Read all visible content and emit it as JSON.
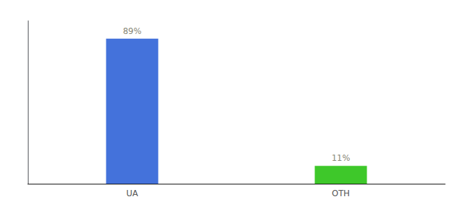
{
  "chart_data": {
    "type": "bar",
    "categories": [
      "UA",
      "OTH"
    ],
    "values": [
      89,
      11
    ],
    "colors": [
      "#4472db",
      "#3ec82a"
    ],
    "data_labels": true,
    "value_labels": [
      "89%",
      "11%"
    ],
    "ylim": [
      0,
      100
    ],
    "tick_labels": "x",
    "grid": false
  }
}
